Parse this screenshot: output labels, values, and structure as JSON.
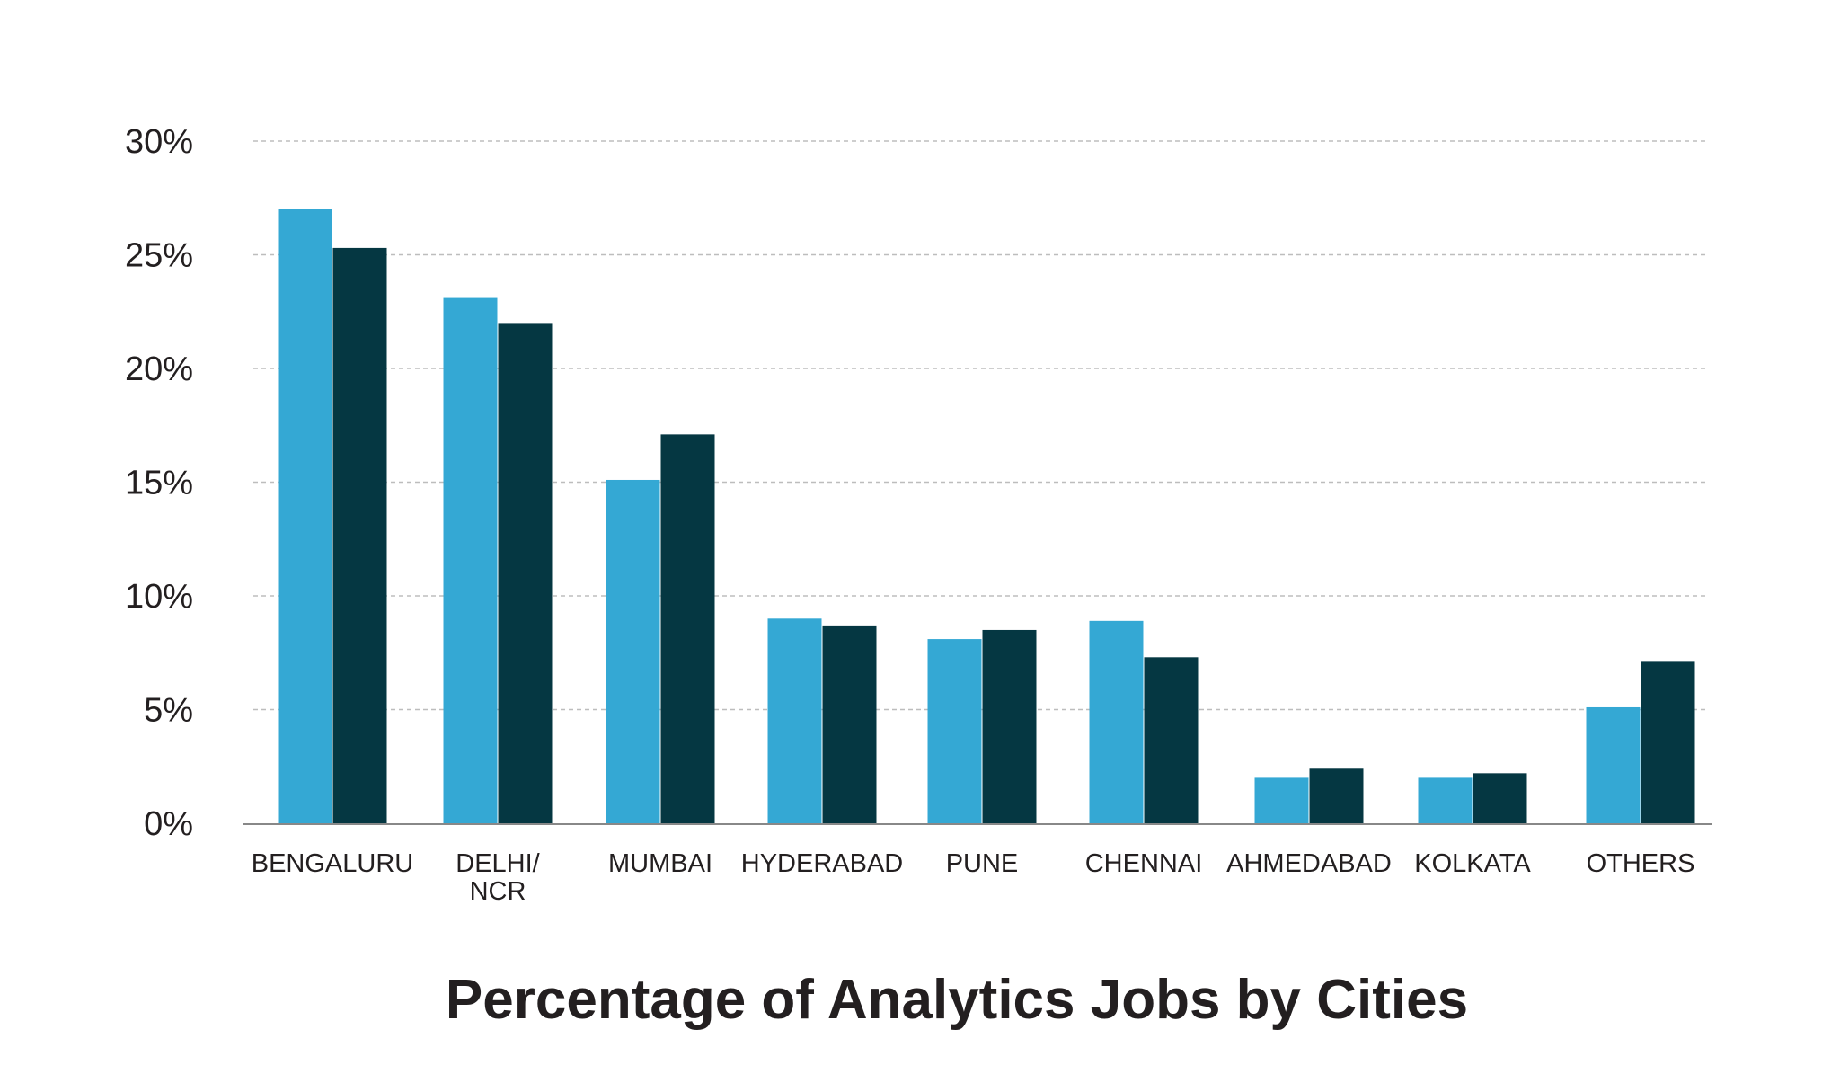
{
  "chart_data": {
    "type": "bar",
    "title": "Percentage of Analytics Jobs by Cities",
    "xlabel": "",
    "ylabel": "",
    "ylim": [
      0,
      30
    ],
    "yticks": [
      0,
      5,
      10,
      15,
      20,
      25,
      30
    ],
    "ytick_labels": [
      "0%",
      "5%",
      "10%",
      "15%",
      "20%",
      "25%",
      "30%"
    ],
    "grid": true,
    "legend": "none",
    "categories": [
      [
        "BENGALURU"
      ],
      [
        "DELHI/",
        "NCR"
      ],
      [
        "MUMBAI"
      ],
      [
        "HYDERABAD"
      ],
      [
        "PUNE"
      ],
      [
        "CHENNAI"
      ],
      [
        "AHMEDABAD"
      ],
      [
        "KOLKATA"
      ],
      [
        "OTHERS"
      ]
    ],
    "series": [
      {
        "color": "#34a8d4",
        "values": [
          27.0,
          23.1,
          15.1,
          9.0,
          8.1,
          8.9,
          2.0,
          2.0,
          5.1
        ]
      },
      {
        "color": "#053742",
        "values": [
          25.3,
          22.0,
          17.1,
          8.7,
          8.5,
          7.3,
          2.4,
          2.2,
          7.1
        ]
      }
    ]
  }
}
